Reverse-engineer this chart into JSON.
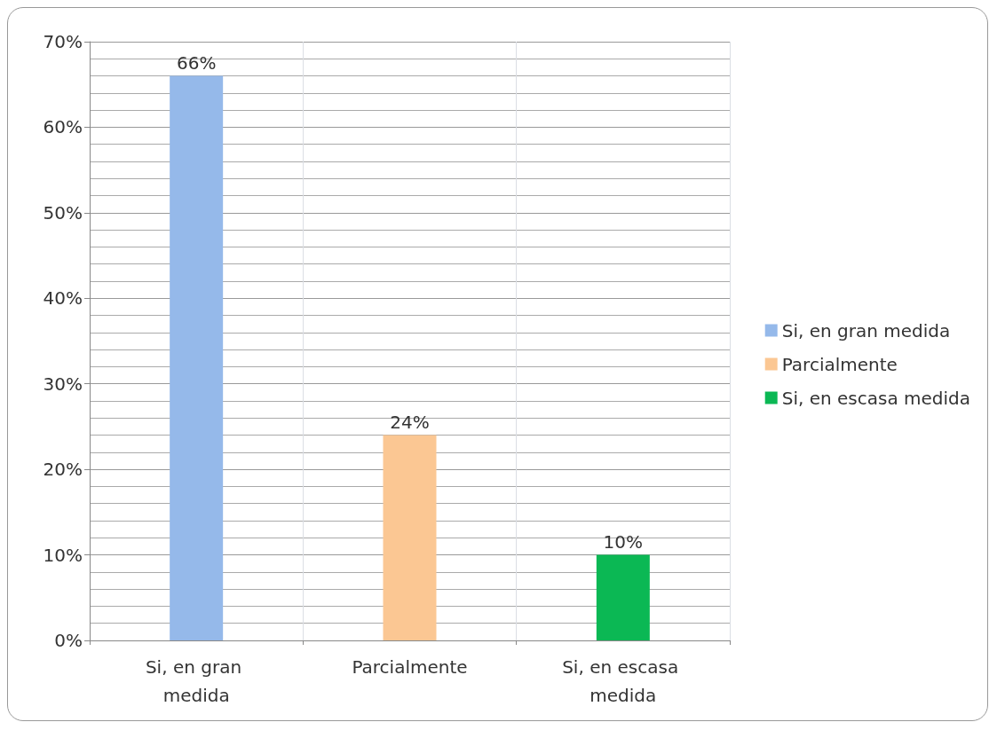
{
  "chart_data": {
    "type": "bar",
    "categories": [
      "Si, en gran medida",
      "Parcialmente",
      "Si, en escasa medida"
    ],
    "series": [
      {
        "name": "Si, en gran medida",
        "color": "#95b9ea",
        "values": [
          66,
          null,
          null
        ],
        "value_labels": [
          "66%",
          null,
          null
        ]
      },
      {
        "name": "Parcialmente",
        "color": "#fbc793",
        "values": [
          null,
          24,
          null
        ],
        "value_labels": [
          null,
          "24%",
          null
        ]
      },
      {
        "name": "Si, en escasa medida",
        "color": "#0bb854",
        "values": [
          null,
          null,
          10
        ],
        "value_labels": [
          null,
          null,
          "10%"
        ]
      }
    ],
    "ylim": [
      0,
      70
    ],
    "yticks": [
      {
        "value": 0,
        "label": "0%"
      },
      {
        "value": 10,
        "label": "10%"
      },
      {
        "value": 20,
        "label": "20%"
      },
      {
        "value": 30,
        "label": "30%"
      },
      {
        "value": 40,
        "label": "40%"
      },
      {
        "value": 50,
        "label": "50%"
      },
      {
        "value": 60,
        "label": "60%"
      },
      {
        "value": 70,
        "label": "70%"
      }
    ],
    "grid": true,
    "legend": "right"
  }
}
